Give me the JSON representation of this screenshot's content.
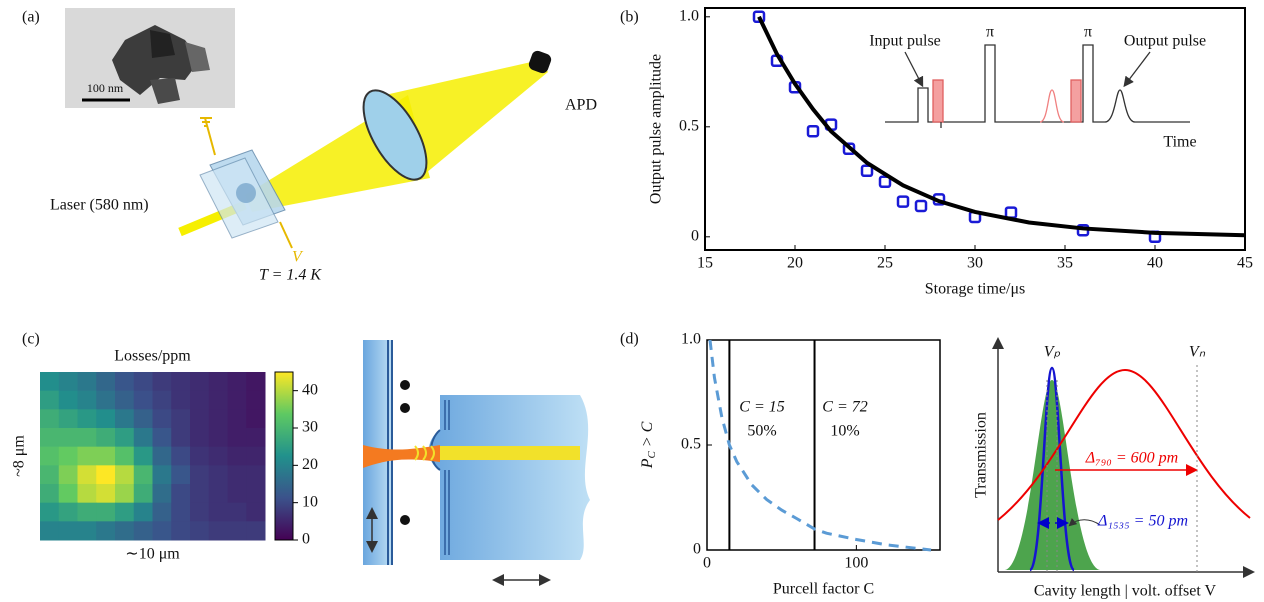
{
  "figure": {
    "panel_labels": [
      "(a)",
      "(b)",
      "(c)",
      "(d)"
    ],
    "a": {
      "scale_bar": "100 nm",
      "detector": "APD",
      "laser": "Laser (580 nm)",
      "temperature": "T = 1.4 K",
      "voltage": "V"
    },
    "d_sketch": {
      "peak_p": "Vₚ",
      "peak_n": "Vₙ",
      "width_790": "Δ₇₉₀ = 600 pm",
      "width_1535": "Δ₁₅₃₅ = 50 pm",
      "ylabel": "Transmission",
      "xlabel": "Cavity length | volt. offset V"
    }
  },
  "chart_data": [
    {
      "type": "scatter",
      "xlabel": "Storage time/μs",
      "ylabel": "Output pulse amplitude",
      "xlim": [
        15,
        45
      ],
      "xticks": [
        15,
        20,
        25,
        30,
        35,
        40,
        45
      ],
      "ylim": [
        -0.06,
        1.04
      ],
      "yticks": [
        0,
        0.5,
        {
          "value": 1,
          "label": "1.0"
        }
      ],
      "series": [
        {
          "type": "scatter",
          "color": "#1a1ad6",
          "x": [
            18,
            19,
            20,
            21,
            22,
            23,
            24,
            25,
            26,
            27,
            28,
            30,
            32,
            36,
            40
          ],
          "values": [
            1.0,
            0.8,
            0.68,
            0.48,
            0.51,
            0.4,
            0.3,
            0.25,
            0.16,
            0.14,
            0.17,
            0.09,
            0.11,
            0.03,
            0.0
          ]
        },
        {
          "type": "line",
          "color": "#000000",
          "x": [
            18,
            19,
            20,
            21,
            22,
            24,
            26,
            28,
            30,
            33,
            36,
            40,
            45
          ],
          "values": [
            1.0,
            0.83,
            0.695,
            0.58,
            0.48,
            0.336,
            0.234,
            0.162,
            0.113,
            0.065,
            0.038,
            0.018,
            0.007
          ]
        }
      ],
      "annotations": [
        "Input pulse",
        "π",
        "π",
        "Output pulse",
        "Time"
      ]
    },
    {
      "type": "heatmap",
      "title": "Losses/ppm",
      "xlabel": "∼10 μm",
      "ylabel": "~8 μm",
      "colormap": "viridis",
      "clim": [
        0,
        45
      ],
      "cticks": [
        0,
        10,
        20,
        30,
        40
      ],
      "values": [
        [
          22,
          20,
          18,
          15,
          12,
          10,
          8,
          7,
          6,
          5,
          4,
          3
        ],
        [
          25,
          22,
          20,
          17,
          14,
          11,
          9,
          7,
          6,
          5,
          4,
          3
        ],
        [
          28,
          26,
          24,
          22,
          18,
          14,
          10,
          8,
          6,
          5,
          4,
          3
        ],
        [
          30,
          30,
          30,
          28,
          25,
          18,
          12,
          8,
          6,
          5,
          4,
          4
        ],
        [
          32,
          34,
          36,
          36,
          32,
          24,
          15,
          10,
          7,
          6,
          5,
          5
        ],
        [
          30,
          36,
          42,
          45,
          40,
          30,
          18,
          12,
          8,
          7,
          6,
          6
        ],
        [
          28,
          34,
          40,
          42,
          38,
          28,
          16,
          10,
          8,
          7,
          6,
          6
        ],
        [
          24,
          26,
          28,
          28,
          25,
          20,
          14,
          10,
          8,
          7,
          7,
          6
        ],
        [
          20,
          20,
          20,
          18,
          16,
          14,
          12,
          10,
          9,
          8,
          8,
          8
        ]
      ]
    },
    {
      "type": "line",
      "xlabel": "Purcell factor C",
      "ylabel": [
        "P",
        "C",
        " > C"
      ],
      "xlim": [
        0,
        156
      ],
      "xticks": [
        0,
        100
      ],
      "ylim": [
        0,
        1
      ],
      "yticks": [
        0,
        0.5,
        {
          "value": 1,
          "label": "1.0"
        }
      ],
      "series": [
        {
          "type": "line",
          "color": "#5b9bd5",
          "dashed": true,
          "x": [
            2,
            5,
            10,
            15,
            20,
            30,
            40,
            50,
            60,
            72,
            80,
            100,
            120,
            140,
            150
          ],
          "values": [
            1.0,
            0.82,
            0.63,
            0.5,
            0.42,
            0.31,
            0.24,
            0.19,
            0.15,
            0.1,
            0.08,
            0.05,
            0.025,
            0.008,
            0.0
          ]
        }
      ],
      "vlines": [
        15,
        72
      ],
      "annotations": [
        "C = 15",
        "50%",
        "C = 72",
        "10%"
      ]
    }
  ]
}
